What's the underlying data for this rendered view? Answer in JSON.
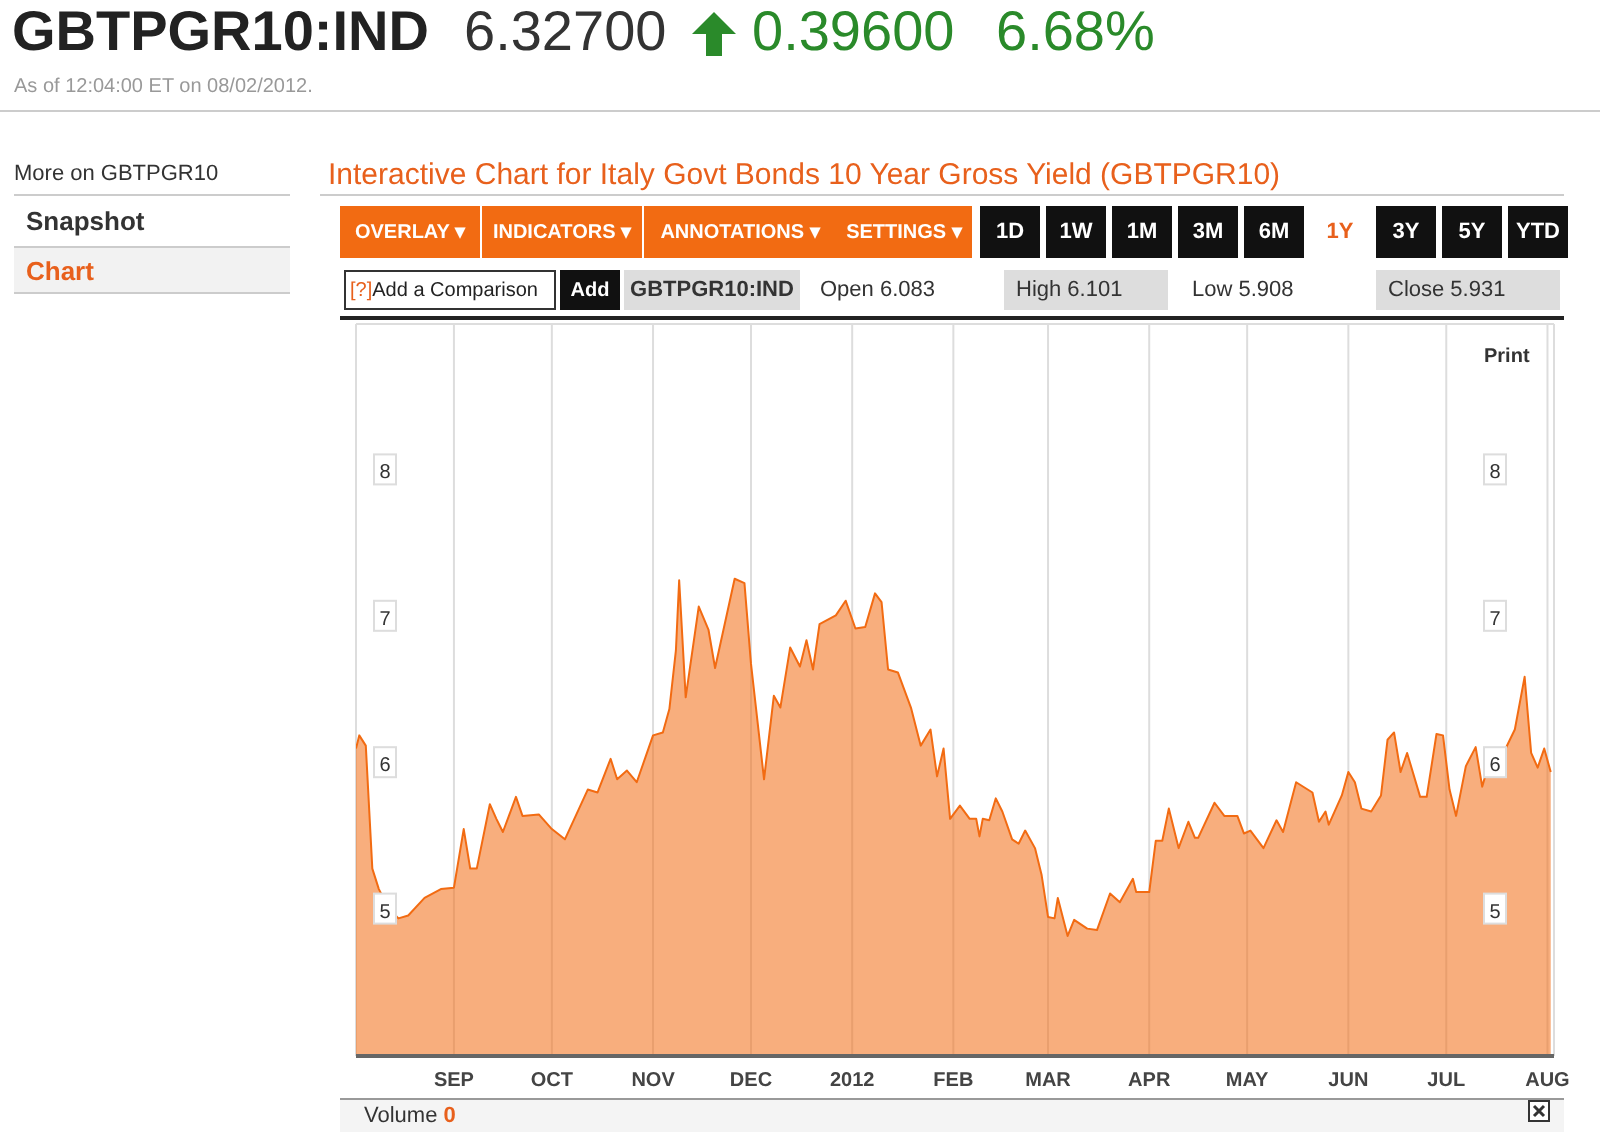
{
  "chart_data": {
    "type": "area",
    "title": "Interactive Chart for Italy Govt Bonds 10 Year Gross Yield (GBTPGR10)",
    "annotations": [
      "GBTPGR10:IND",
      "6.32700",
      "0.39600",
      "6.68%",
      "As of 12:04:00 ET on 08/02/2012.",
      "More on GBTPGR10",
      "Snapshot",
      "Chart",
      "OVERLAY ▾",
      "INDICATORS ▾",
      "ANNOTATIONS ▾",
      "SETTINGS ▾",
      "1D",
      "1W",
      "1M",
      "3M",
      "6M",
      "1Y",
      "3Y",
      "5Y",
      "YTD",
      "[?]",
      "Add a Comparison",
      "Add",
      "GBTPGR10:IND",
      "Open 6.083",
      "High 6.101",
      "Low 5.908",
      "Close 5.931",
      "Print",
      "Volume",
      "0"
    ],
    "x": [
      "2011-08-02",
      "2011-08-03",
      "2011-08-05",
      "2011-08-07",
      "2011-08-09",
      "2011-08-12",
      "2011-08-15",
      "2011-08-18",
      "2011-08-23",
      "2011-08-28",
      "2011-09-01",
      "2011-09-04",
      "2011-09-06",
      "2011-09-08",
      "2011-09-12",
      "2011-09-14",
      "2011-09-16",
      "2011-09-20",
      "2011-09-22",
      "2011-09-27",
      "2011-10-01",
      "2011-10-05",
      "2011-10-12",
      "2011-10-15",
      "2011-10-19",
      "2011-10-21",
      "2011-10-24",
      "2011-10-27",
      "2011-11-01",
      "2011-11-04",
      "2011-11-06",
      "2011-11-08",
      "2011-11-09",
      "2011-11-11",
      "2011-11-15",
      "2011-11-18",
      "2011-11-20",
      "2011-11-26",
      "2011-11-29",
      "2011-12-01",
      "2011-12-05",
      "2011-12-08",
      "2011-12-10",
      "2011-12-13",
      "2011-12-16",
      "2011-12-18",
      "2011-12-20",
      "2011-12-22",
      "2011-12-27",
      "2011-12-30",
      "2012-01-02",
      "2012-01-05",
      "2012-01-08",
      "2012-01-10",
      "2012-01-12",
      "2012-01-15",
      "2012-01-19",
      "2012-01-22",
      "2012-01-25",
      "2012-01-27",
      "2012-01-29",
      "2012-01-31",
      "2012-02-03",
      "2012-02-06",
      "2012-02-08",
      "2012-02-09",
      "2012-02-10",
      "2012-02-12",
      "2012-02-14",
      "2012-02-16",
      "2012-02-19",
      "2012-02-21",
      "2012-02-23",
      "2012-02-26",
      "2012-02-28",
      "2012-03-01",
      "2012-03-03",
      "2012-03-04",
      "2012-03-07",
      "2012-03-09",
      "2012-03-13",
      "2012-03-16",
      "2012-03-20",
      "2012-03-23",
      "2012-03-25",
      "2012-03-27",
      "2012-03-28",
      "2012-04-01",
      "2012-04-03",
      "2012-04-05",
      "2012-04-07",
      "2012-04-10",
      "2012-04-13",
      "2012-04-15",
      "2012-04-16",
      "2012-04-21",
      "2012-04-24",
      "2012-04-28",
      "2012-04-30",
      "2012-05-02",
      "2012-05-06",
      "2012-05-10",
      "2012-05-12",
      "2012-05-16",
      "2012-05-21",
      "2012-05-23",
      "2012-05-25",
      "2012-05-26",
      "2012-05-30",
      "2012-06-01",
      "2012-06-03",
      "2012-06-05",
      "2012-06-08",
      "2012-06-11",
      "2012-06-13",
      "2012-06-15",
      "2012-06-17",
      "2012-06-19",
      "2012-06-23",
      "2012-06-25",
      "2012-06-28",
      "2012-06-30",
      "2012-07-02",
      "2012-07-04",
      "2012-07-07",
      "2012-07-10",
      "2012-07-12",
      "2012-07-15",
      "2012-07-17",
      "2012-07-22",
      "2012-07-25",
      "2012-07-27",
      "2012-07-29",
      "2012-07-31",
      "2012-08-02"
    ],
    "series": [
      {
        "color": "#f26b12",
        "values": [
          6.1,
          6.19,
          6.12,
          5.28,
          5.14,
          5.01,
          4.94,
          4.96,
          5.08,
          5.14,
          5.15,
          5.55,
          5.28,
          5.28,
          5.72,
          5.62,
          5.53,
          5.77,
          5.64,
          5.65,
          5.55,
          5.48,
          5.82,
          5.8,
          6.03,
          5.89,
          5.95,
          5.87,
          6.19,
          6.21,
          6.37,
          6.77,
          7.25,
          6.45,
          7.07,
          6.91,
          6.65,
          7.26,
          7.23,
          6.68,
          5.89,
          6.46,
          6.38,
          6.79,
          6.66,
          6.84,
          6.64,
          6.95,
          7.01,
          7.11,
          6.92,
          6.93,
          7.16,
          7.1,
          6.64,
          6.62,
          6.38,
          6.12,
          6.23,
          5.91,
          6.1,
          5.62,
          5.71,
          5.62,
          5.62,
          5.5,
          5.62,
          5.61,
          5.76,
          5.67,
          5.48,
          5.45,
          5.54,
          5.42,
          5.24,
          4.95,
          4.94,
          5.08,
          4.82,
          4.93,
          4.87,
          4.86,
          5.11,
          5.05,
          5.13,
          5.21,
          5.12,
          5.12,
          5.47,
          5.47,
          5.69,
          5.42,
          5.6,
          5.49,
          5.49,
          5.73,
          5.64,
          5.64,
          5.52,
          5.54,
          5.42,
          5.61,
          5.53,
          5.87,
          5.8,
          5.6,
          5.67,
          5.58,
          5.78,
          5.94,
          5.87,
          5.69,
          5.67,
          5.78,
          6.16,
          6.21,
          5.94,
          6.07,
          5.77,
          5.77,
          6.2,
          6.19,
          5.82,
          5.64,
          5.98,
          6.11,
          5.84,
          6.07,
          6.0,
          6.23,
          6.59,
          6.07,
          5.97,
          6.1,
          5.94
        ]
      }
    ],
    "xlim": [
      "2011-08-02",
      "2012-08-03"
    ],
    "xticks": [
      {
        "value": "2011-09-01",
        "label": "SEP"
      },
      {
        "value": "2011-10-01",
        "label": "OCT"
      },
      {
        "value": "2011-11-01",
        "label": "NOV"
      },
      {
        "value": "2011-12-01",
        "label": "DEC"
      },
      {
        "value": "2012-01-01",
        "label": "2012"
      },
      {
        "value": "2012-02-01",
        "label": "FEB"
      },
      {
        "value": "2012-03-01",
        "label": "MAR"
      },
      {
        "value": "2012-04-01",
        "label": "APR"
      },
      {
        "value": "2012-05-01",
        "label": "MAY"
      },
      {
        "value": "2012-06-01",
        "label": "JUN"
      },
      {
        "value": "2012-07-01",
        "label": "JUL"
      },
      {
        "value": "2012-08-01",
        "label": "AUG"
      }
    ],
    "ylim": [
      4,
      9
    ],
    "yticks": [
      5,
      6,
      7,
      8
    ],
    "y2lim": [
      4,
      9
    ],
    "y2ticks": [
      5,
      6,
      7,
      8
    ],
    "grid": true,
    "legend": false
  }
}
